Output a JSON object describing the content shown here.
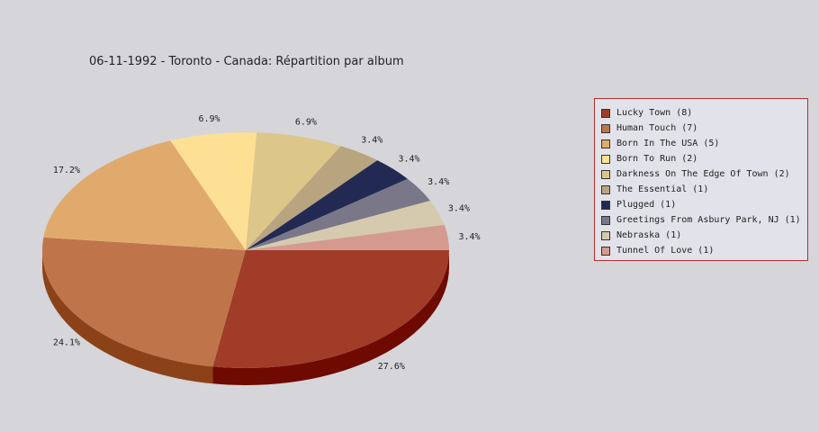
{
  "chart_data": {
    "type": "pie",
    "title": "06-11-1992 - Toronto - Canada:  Répartition par album",
    "slices": [
      {
        "label": "Lucky Town (8)",
        "value": 8,
        "pct_label": "27.6%",
        "color": "#a03c28",
        "side": "#6e0a00"
      },
      {
        "label": "Human Touch (7)",
        "value": 7,
        "pct_label": "24.1%",
        "color": "#c0744a",
        "side": "#8c4218"
      },
      {
        "label": "Born In The USA (5)",
        "value": 5,
        "pct_label": "17.2%",
        "color": "#e0aa6c",
        "side": "#ae783a"
      },
      {
        "label": "Born To Run (2)",
        "value": 2,
        "pct_label": "6.9%",
        "color": "#fde094",
        "side": "#cbae62"
      },
      {
        "label": "Darkness On The Edge Of Town (2)",
        "value": 2,
        "pct_label": "6.9%",
        "color": "#dcc68a",
        "side": "#aa9458"
      },
      {
        "label": "The Essential (1)",
        "value": 1,
        "pct_label": "3.4%",
        "color": "#b8a47e",
        "side": "#86724c"
      },
      {
        "label": "Plugged (1)",
        "value": 1,
        "pct_label": "3.4%",
        "color": "#222a54",
        "side": "#000022"
      },
      {
        "label": "Greetings From Asbury Park, NJ (1)",
        "value": 1,
        "pct_label": "3.4%",
        "color": "#7a7888",
        "side": "#484656"
      },
      {
        "label": "Nebraska (1)",
        "value": 1,
        "pct_label": "3.4%",
        "color": "#d6caae",
        "side": "#a4987c"
      },
      {
        "label": "Tunnel Of Love (1)",
        "value": 1,
        "pct_label": "3.4%",
        "color": "#d49a90",
        "side": "#a2685e"
      }
    ],
    "legend_position": "right"
  }
}
